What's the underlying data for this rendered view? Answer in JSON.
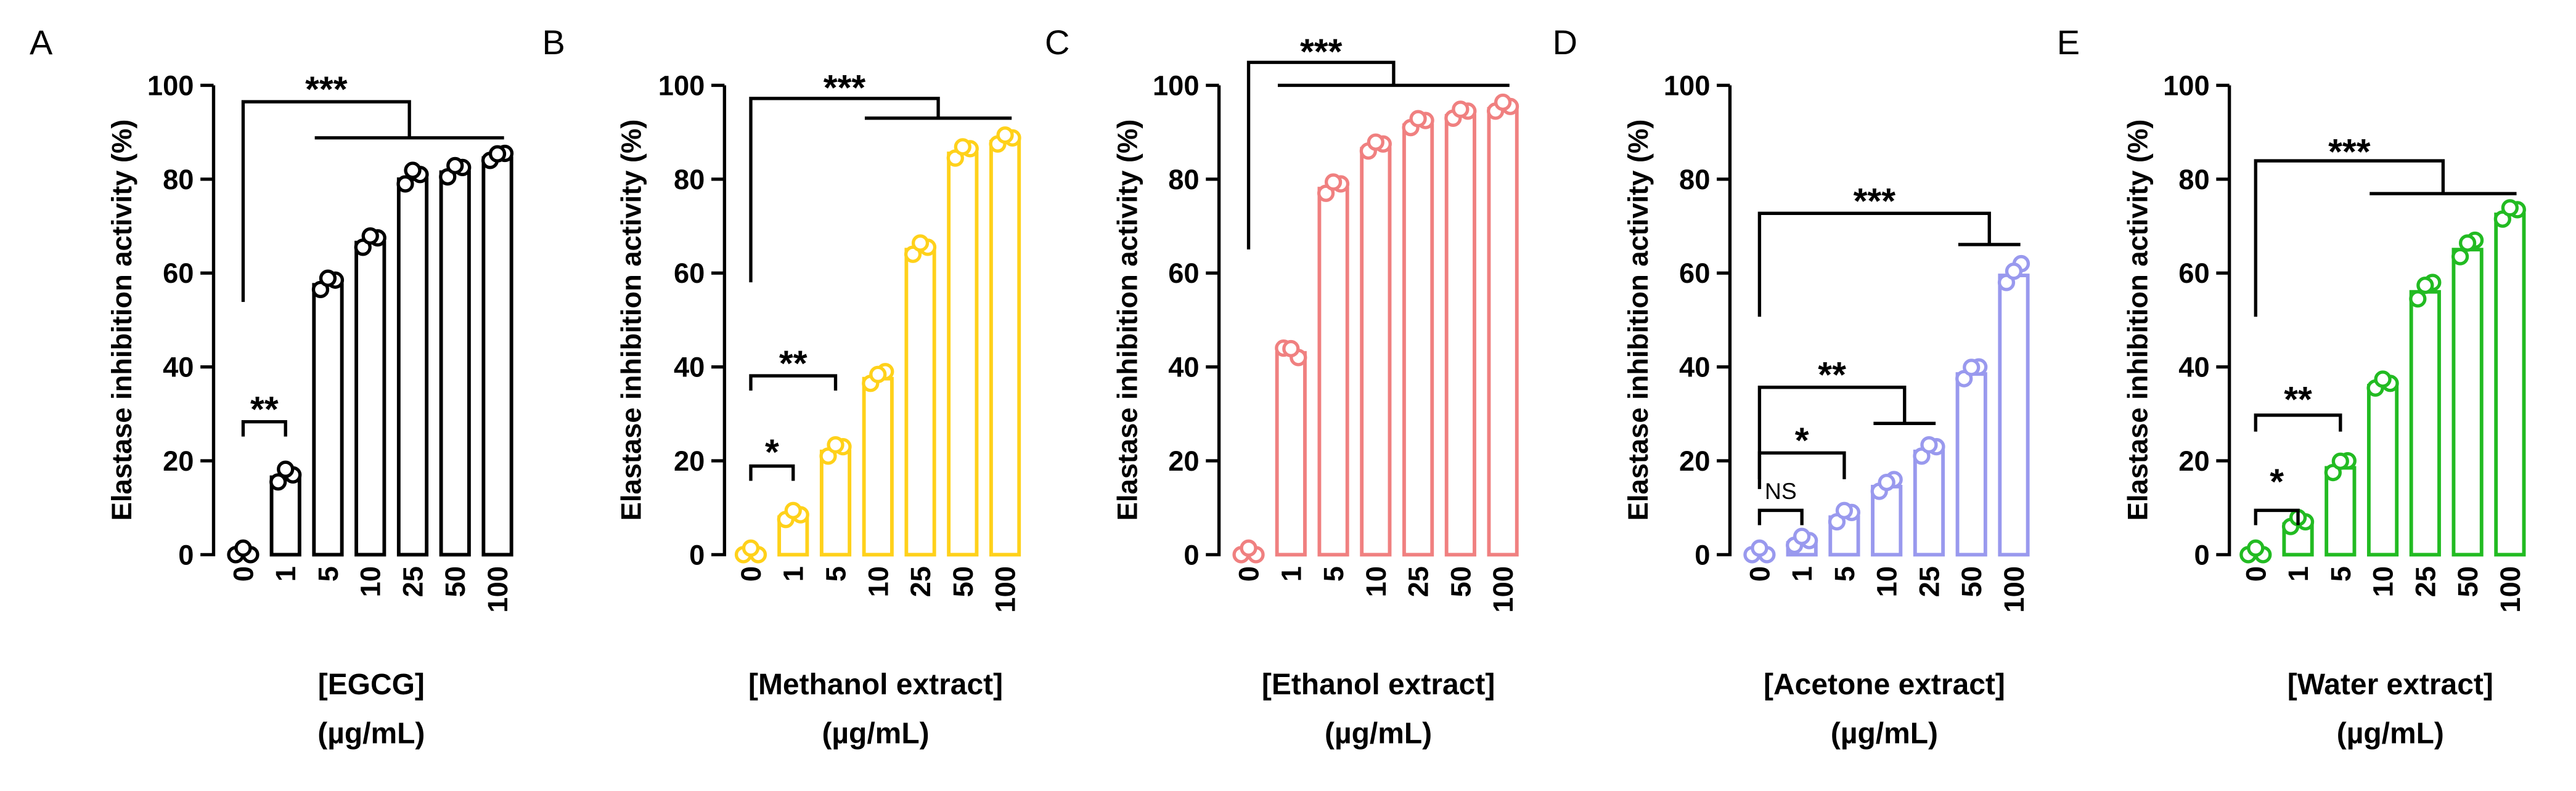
{
  "chart_data": [
    {
      "type": "bar",
      "panel": "A",
      "color": "#000000",
      "categories": [
        "0",
        "1",
        "5",
        "10",
        "25",
        "50",
        "100"
      ],
      "values": [
        0,
        16.5,
        57.5,
        66.5,
        80,
        81.5,
        84.5
      ],
      "points": [
        [
          0,
          0,
          0
        ],
        [
          15.5,
          17,
          16.8
        ],
        [
          56.5,
          58.5,
          57.5
        ],
        [
          65.5,
          67.5,
          66.5
        ],
        [
          79,
          81,
          80.5
        ],
        [
          80.5,
          82.5,
          81.5
        ],
        [
          84,
          85.5,
          84
        ]
      ],
      "ylabel": "Elastase inhibition activity (%)",
      "xlabel": [
        "[EGCG]",
        "(µg/mL)"
      ],
      "ylim": [
        0,
        100
      ],
      "yticks": [
        "0",
        "20",
        "40",
        "60",
        "80",
        "100"
      ],
      "annotations": [
        {
          "kind": "simple",
          "from": 0,
          "to": 1,
          "label": "**"
        },
        {
          "kind": "group",
          "from": 0,
          "group_from": 2,
          "group_to": 6,
          "label": "***"
        }
      ]
    },
    {
      "type": "bar",
      "panel": "B",
      "color": "#FFD11A",
      "categories": [
        "0",
        "1",
        "5",
        "10",
        "25",
        "50",
        "100"
      ],
      "values": [
        0,
        8,
        22,
        37.5,
        65,
        85.5,
        88
      ],
      "points": [
        [
          0,
          0,
          0
        ],
        [
          7.5,
          8.5,
          8
        ],
        [
          21,
          23,
          22
        ],
        [
          36.5,
          39,
          37
        ],
        [
          64,
          65.5,
          65
        ],
        [
          84.5,
          86.5,
          85.5
        ],
        [
          87.5,
          88.8,
          88
        ]
      ],
      "ylabel": "Elastase inhibition activity (%)",
      "xlabel": [
        "[Methanol extract]",
        "(µg/mL)"
      ],
      "ylim": [
        0,
        100
      ],
      "yticks": [
        "0",
        "20",
        "40",
        "60",
        "80",
        "100"
      ],
      "annotations": [
        {
          "kind": "simple",
          "from": 0,
          "to": 1,
          "label": "*"
        },
        {
          "kind": "simple",
          "from": 0,
          "to": 2,
          "label": "**"
        },
        {
          "kind": "group",
          "from": 0,
          "group_from": 3,
          "group_to": 6,
          "label": "***"
        }
      ]
    },
    {
      "type": "bar",
      "panel": "C",
      "color": "#F08080",
      "categories": [
        "0",
        "1",
        "5",
        "10",
        "25",
        "50",
        "100"
      ],
      "values": [
        0,
        43,
        78,
        86.5,
        91.5,
        93.5,
        95
      ],
      "points": [
        [
          0,
          0,
          0
        ],
        [
          44,
          42,
          42.5
        ],
        [
          77,
          79,
          78
        ],
        [
          86,
          87.5,
          86.5
        ],
        [
          91,
          92.5,
          91.5
        ],
        [
          93,
          94.5,
          93.5
        ],
        [
          94.5,
          95.5,
          95
        ]
      ],
      "ylabel": "Elastase inhibition activity (%)",
      "xlabel": [
        "[Ethanol extract]",
        "(µg/mL)"
      ],
      "ylim": [
        0,
        100
      ],
      "yticks": [
        "0",
        "20",
        "40",
        "60",
        "80",
        "100"
      ],
      "annotations": [
        {
          "kind": "group",
          "from": 0,
          "group_from": 1,
          "group_to": 6,
          "label": "***"
        }
      ]
    },
    {
      "type": "bar",
      "panel": "D",
      "color": "#9999EE",
      "categories": [
        "0",
        "1",
        "5",
        "10",
        "25",
        "50",
        "100"
      ],
      "values": [
        0,
        2.5,
        8,
        14.5,
        22,
        38.5,
        59.5
      ],
      "points": [
        [
          0,
          0,
          0
        ],
        [
          2,
          3,
          2.5
        ],
        [
          7,
          9,
          8
        ],
        [
          13.5,
          16,
          14
        ],
        [
          21,
          23,
          22
        ],
        [
          37.5,
          40,
          38.5
        ],
        [
          58,
          62,
          59
        ]
      ],
      "ylabel": "Elastase inhibition activity (%)",
      "xlabel": [
        "[Acetone extract]",
        "(µg/mL)"
      ],
      "ylim": [
        0,
        100
      ],
      "yticks": [
        "0",
        "20",
        "40",
        "60",
        "80",
        "100"
      ],
      "annotations": [
        {
          "kind": "simple",
          "from": 0,
          "to": 1,
          "label": "NS"
        },
        {
          "kind": "simple",
          "from": 0,
          "to": 2,
          "label": "*"
        },
        {
          "kind": "group",
          "from": 0,
          "group_from": 3,
          "group_to": 4,
          "label": "**"
        },
        {
          "kind": "group",
          "from": 0,
          "group_from": 5,
          "group_to": 6,
          "label": "***"
        }
      ]
    },
    {
      "type": "bar",
      "panel": "E",
      "color": "#22BB22",
      "categories": [
        "0",
        "1",
        "5",
        "10",
        "25",
        "50",
        "100"
      ],
      "values": [
        0,
        6.5,
        18.5,
        36,
        56,
        65,
        72.5
      ],
      "points": [
        [
          0,
          0,
          0
        ],
        [
          6,
          7,
          6.5
        ],
        [
          17.5,
          20,
          18.5
        ],
        [
          35.5,
          36.5,
          36
        ],
        [
          54.5,
          58,
          56
        ],
        [
          63.5,
          67,
          65
        ],
        [
          71.5,
          73.5,
          72.5
        ]
      ],
      "ylabel": "Elastase inhibition activity (%)",
      "xlabel": [
        "[Water extract]",
        "(µg/mL)"
      ],
      "ylim": [
        0,
        100
      ],
      "yticks": [
        "0",
        "20",
        "40",
        "60",
        "80",
        "100"
      ],
      "annotations": [
        {
          "kind": "simple",
          "from": 0,
          "to": 1,
          "label": "*"
        },
        {
          "kind": "simple",
          "from": 0,
          "to": 2,
          "label": "**"
        },
        {
          "kind": "group",
          "from": 0,
          "group_from": 3,
          "group_to": 6,
          "label": "***"
        }
      ]
    }
  ]
}
